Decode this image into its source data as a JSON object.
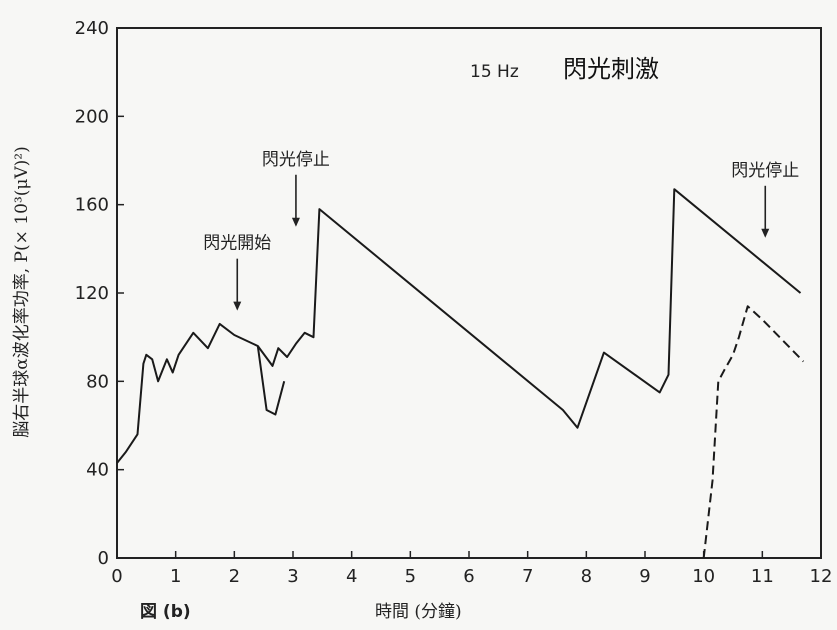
{
  "chart_data": {
    "type": "line",
    "title": "閃光刺激",
    "frequency_label": "15 Hz",
    "figure_label": "図 (b)",
    "xlabel": "時間 (分鐘)",
    "ylabel": "脳右半球α波化率功率, P(× 10³(μV)²)",
    "xlim": [
      0,
      12
    ],
    "ylim": [
      0,
      240
    ],
    "x_ticks": [
      0,
      1,
      2,
      3,
      4,
      5,
      6,
      7,
      8,
      9,
      10,
      11,
      12
    ],
    "y_ticks": [
      0,
      40,
      80,
      120,
      160,
      200,
      240
    ],
    "grid": false,
    "series": [
      {
        "style": "solid",
        "x": [
          0.0,
          0.15,
          0.35,
          0.45,
          0.5,
          0.6,
          0.7,
          0.85,
          0.95,
          1.05,
          1.3,
          1.55,
          1.75,
          2.0,
          2.4,
          2.65,
          2.75,
          2.9,
          3.05,
          3.2,
          3.35,
          3.45,
          7.6,
          7.85,
          8.3,
          9.25,
          9.4,
          9.5,
          11.65
        ],
        "y": [
          43,
          48,
          56,
          88,
          92,
          90,
          80,
          90,
          84,
          92,
          102,
          95,
          106,
          101,
          96,
          87,
          95,
          91,
          97,
          102,
          100,
          158,
          67,
          59,
          93,
          75,
          83,
          167,
          120
        ]
      },
      {
        "style": "dip",
        "x": [
          2.4,
          2.55,
          2.7,
          2.85
        ],
        "y": [
          96,
          67,
          65,
          80
        ]
      },
      {
        "style": "dashed",
        "x": [
          10.0,
          10.15,
          10.25,
          10.35,
          10.5,
          10.6,
          10.75,
          11.0,
          11.7
        ],
        "y": [
          0,
          35,
          80,
          85,
          92,
          100,
          114,
          108,
          89
        ]
      }
    ],
    "annotations": [
      {
        "text": "閃光開始",
        "x": 2.05,
        "y": 112
      },
      {
        "text": "閃光停止",
        "x": 3.05,
        "y": 150
      },
      {
        "text": "閃光停止",
        "x": 11.05,
        "y": 145
      }
    ]
  }
}
